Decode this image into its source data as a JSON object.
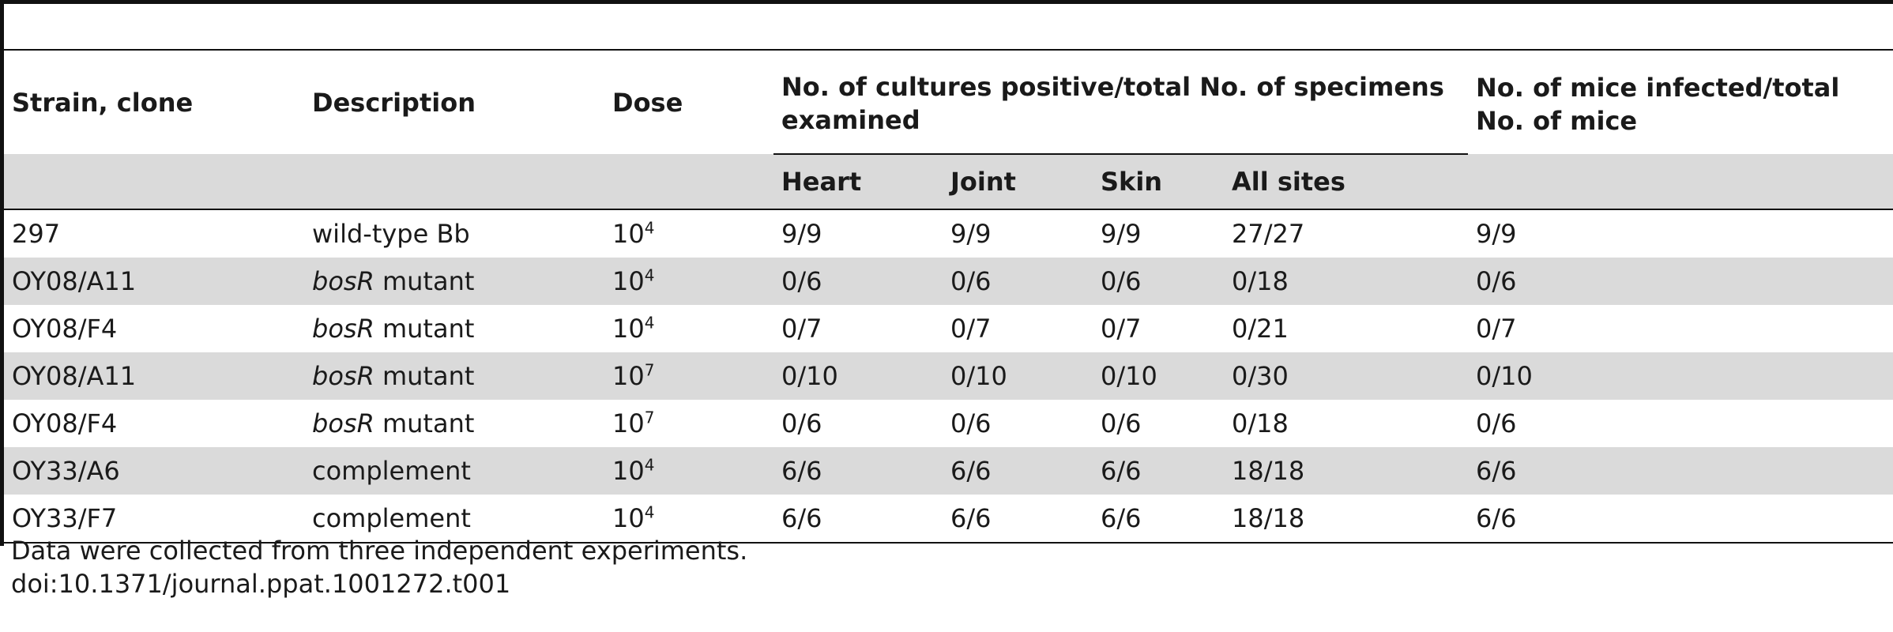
{
  "headers": {
    "strain": "Strain, clone",
    "description": "Description",
    "dose": "Dose",
    "cultures_group": "No. of cultures positive/total No. of specimens examined",
    "mice_group": "No. of mice infected/total No. of mice",
    "heart": "Heart",
    "joint": "Joint",
    "skin": "Skin",
    "all_sites": "All sites"
  },
  "rows": [
    {
      "strain": "297",
      "desc_italic": "",
      "desc_rest": "wild-type Bb",
      "dose_base": "10",
      "dose_exp": "4",
      "heart": "9/9",
      "joint": "9/9",
      "skin": "9/9",
      "all": "27/27",
      "mice": "9/9"
    },
    {
      "strain": "OY08/A11",
      "desc_italic": "bosR",
      "desc_rest": " mutant",
      "dose_base": "10",
      "dose_exp": "4",
      "heart": "0/6",
      "joint": "0/6",
      "skin": "0/6",
      "all": "0/18",
      "mice": "0/6"
    },
    {
      "strain": "OY08/F4",
      "desc_italic": "bosR",
      "desc_rest": " mutant",
      "dose_base": "10",
      "dose_exp": "4",
      "heart": "0/7",
      "joint": "0/7",
      "skin": "0/7",
      "all": "0/21",
      "mice": "0/7"
    },
    {
      "strain": "OY08/A11",
      "desc_italic": "bosR",
      "desc_rest": " mutant",
      "dose_base": "10",
      "dose_exp": "7",
      "heart": "0/10",
      "joint": "0/10",
      "skin": "0/10",
      "all": "0/30",
      "mice": "0/10"
    },
    {
      "strain": "OY08/F4",
      "desc_italic": "bosR",
      "desc_rest": " mutant",
      "dose_base": "10",
      "dose_exp": "7",
      "heart": "0/6",
      "joint": "0/6",
      "skin": "0/6",
      "all": "0/18",
      "mice": "0/6"
    },
    {
      "strain": "OY33/A6",
      "desc_italic": "",
      "desc_rest": "complement",
      "dose_base": "10",
      "dose_exp": "4",
      "heart": "6/6",
      "joint": "6/6",
      "skin": "6/6",
      "all": "18/18",
      "mice": "6/6"
    },
    {
      "strain": "OY33/F7",
      "desc_italic": "",
      "desc_rest": "complement",
      "dose_base": "10",
      "dose_exp": "4",
      "heart": "6/6",
      "joint": "6/6",
      "skin": "6/6",
      "all": "18/18",
      "mice": "6/6"
    }
  ],
  "footnote": {
    "note": "Data were collected from three independent experiments.",
    "doi": "doi:10.1371/journal.ppat.1001272.t001"
  }
}
